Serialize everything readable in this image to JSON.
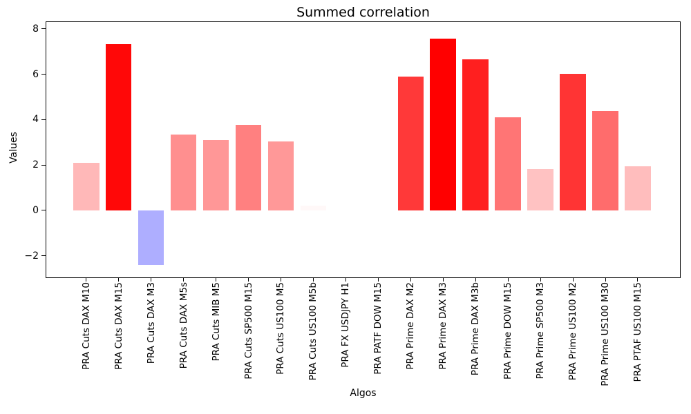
{
  "window": {
    "background": "#ffffff"
  },
  "chart_data": {
    "type": "bar",
    "title": "Summed correlation",
    "xlabel": "Algos",
    "ylabel": "Values",
    "categories": [
      "PRA Cuts DAX M10",
      "PRA Cuts DAX M15",
      "PRA Cuts DAX M3",
      "PRA Cuts DAX M5s",
      "PRA Cuts MIB M5",
      "PRA Cuts SP500 M15",
      "PRA Cuts US100 M5",
      "PRA Cuts US100 M5b",
      "PRA FX USDJPY H1",
      "PRA PATF DOW M15",
      "PRA Prime DAX M2",
      "PRA Prime DAX M3",
      "PRA Prime DAX M3b",
      "PRA Prime DOW M15",
      "PRA Prime SP500 M3",
      "PRA Prime US100 M2",
      "PRA Prime US100 M30",
      "PRA PTAF US100 M15"
    ],
    "values": [
      2.1,
      7.34,
      -2.4,
      3.33,
      3.1,
      3.77,
      3.05,
      0.2,
      0,
      0,
      5.89,
      7.58,
      6.65,
      4.1,
      1.81,
      6.03,
      4.37,
      1.96
    ],
    "bar_colors": [
      "#ffb8b8",
      "#ff0808",
      "#aeaeff",
      "#ff8f8f",
      "#ff9797",
      "#ff8080",
      "#ff9898",
      "#fff8f8",
      "#ffffff",
      "#ffffff",
      "#ff3939",
      "#ff0000",
      "#ff1f1f",
      "#ff7575",
      "#ffc2c2",
      "#ff3434",
      "#ff6c6c",
      "#ffbdbd"
    ],
    "positive_max_color": "#ff0000",
    "negative_color": "#aeaeff",
    "ytick_values": [
      8,
      6,
      4,
      2,
      0,
      -2
    ],
    "ytick_labels": [
      "8",
      "6",
      "4",
      "2",
      "0",
      "−2"
    ],
    "ylim": [
      -2.95,
      8.3
    ],
    "xlim": [
      -1.23,
      18.3
    ],
    "bar_width_fraction": 0.8,
    "grid": false,
    "legend": null
  }
}
